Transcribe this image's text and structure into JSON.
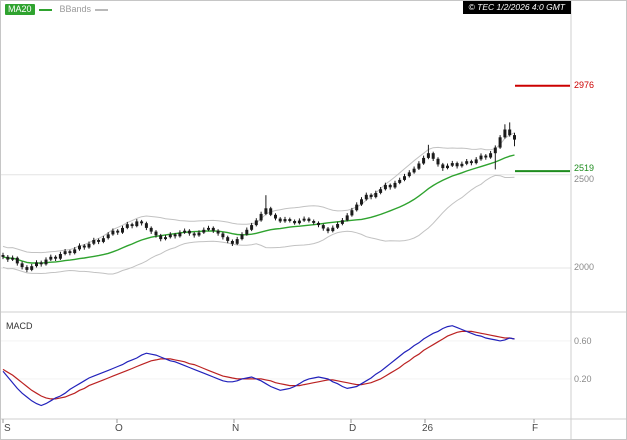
{
  "legend": {
    "ma20_label": "MA20",
    "bbands_label": "BBands"
  },
  "copyright": "© TEC 1/2/2026 4:0 GMT",
  "price_axis": {
    "labels": [
      {
        "text": "2976",
        "color": "#cc0000"
      },
      {
        "text": "2519",
        "color": "#1e8c1e"
      },
      {
        "text": "2500",
        "color": "#8a8a8a"
      },
      {
        "text": "2000",
        "color": "#8a8a8a"
      }
    ]
  },
  "macd_panel": {
    "label": "MACD",
    "axis_labels": [
      "0.60",
      "0.20"
    ]
  },
  "x_axis": {
    "labels": [
      "S",
      "O",
      "N",
      "D",
      "26",
      "F"
    ]
  },
  "colors": {
    "candle": "#1b1b1b",
    "ma20": "#2fa32f",
    "bbands": "#c2c2c2",
    "resistance": "#cc0000",
    "support": "#1e8c1e",
    "macd_line": "#2222bb",
    "signal_line": "#bb2222",
    "grid": "#e4e4e4"
  },
  "chart_data": [
    {
      "type": "candlestick",
      "title": "",
      "xticklabels": [
        "S",
        "O",
        "N",
        "D",
        "26",
        "F"
      ],
      "ylim": [
        1770,
        3430
      ],
      "gridlines_y": [
        2500,
        2000
      ],
      "levels": [
        {
          "value": 2976,
          "color": "#cc0000",
          "label": "2976"
        },
        {
          "value": 2519,
          "color": "#1e8c1e",
          "label": "2519"
        }
      ],
      "overlays": [
        {
          "name": "MA20",
          "type": "sma",
          "period": 20,
          "color": "#2fa32f"
        },
        {
          "name": "BBands",
          "type": "bollinger",
          "period": 20,
          "stddev": 2,
          "color": "#c2c2c2"
        }
      ],
      "ohlc": [
        [
          2070,
          2082,
          2048,
          2060
        ],
        [
          2060,
          2070,
          2033,
          2045
        ],
        [
          2045,
          2067,
          2038,
          2055
        ],
        [
          2055,
          2062,
          2013,
          2025
        ],
        [
          2025,
          2035,
          1993,
          2005
        ],
        [
          2005,
          2015,
          1978,
          1990
        ],
        [
          1990,
          2022,
          1983,
          2010
        ],
        [
          2010,
          2042,
          2003,
          2030
        ],
        [
          2030,
          2040,
          2008,
          2020
        ],
        [
          2020,
          2057,
          2013,
          2045
        ],
        [
          2045,
          2072,
          2038,
          2060
        ],
        [
          2060,
          2068,
          2038,
          2050
        ],
        [
          2050,
          2087,
          2043,
          2075
        ],
        [
          2075,
          2102,
          2068,
          2090
        ],
        [
          2090,
          2098,
          2068,
          2080
        ],
        [
          2080,
          2112,
          2073,
          2100
        ],
        [
          2100,
          2132,
          2093,
          2120
        ],
        [
          2120,
          2128,
          2098,
          2110
        ],
        [
          2110,
          2142,
          2103,
          2130
        ],
        [
          2130,
          2162,
          2123,
          2150
        ],
        [
          2150,
          2158,
          2128,
          2140
        ],
        [
          2140,
          2172,
          2133,
          2160
        ],
        [
          2160,
          2192,
          2153,
          2180
        ],
        [
          2180,
          2212,
          2173,
          2200
        ],
        [
          2200,
          2208,
          2178,
          2190
        ],
        [
          2190,
          2227,
          2183,
          2215
        ],
        [
          2215,
          2247,
          2208,
          2235
        ],
        [
          2235,
          2243,
          2213,
          2225
        ],
        [
          2225,
          2262,
          2218,
          2250
        ],
        [
          2250,
          2258,
          2228,
          2240
        ],
        [
          2240,
          2248,
          2203,
          2215
        ],
        [
          2215,
          2223,
          2183,
          2195
        ],
        [
          2195,
          2203,
          2163,
          2175
        ],
        [
          2175,
          2183,
          2143,
          2155
        ],
        [
          2155,
          2177,
          2148,
          2165
        ],
        [
          2165,
          2192,
          2158,
          2180
        ],
        [
          2180,
          2188,
          2158,
          2170
        ],
        [
          2170,
          2202,
          2163,
          2190
        ],
        [
          2190,
          2212,
          2183,
          2200
        ],
        [
          2200,
          2208,
          2173,
          2185
        ],
        [
          2185,
          2193,
          2163,
          2175
        ],
        [
          2175,
          2202,
          2168,
          2190
        ],
        [
          2190,
          2217,
          2183,
          2205
        ],
        [
          2205,
          2227,
          2198,
          2215
        ],
        [
          2215,
          2223,
          2188,
          2200
        ],
        [
          2200,
          2208,
          2173,
          2185
        ],
        [
          2185,
          2193,
          2153,
          2165
        ],
        [
          2165,
          2173,
          2133,
          2145
        ],
        [
          2145,
          2153,
          2118,
          2130
        ],
        [
          2130,
          2167,
          2123,
          2155
        ],
        [
          2155,
          2192,
          2148,
          2180
        ],
        [
          2180,
          2217,
          2173,
          2205
        ],
        [
          2205,
          2242,
          2198,
          2230
        ],
        [
          2230,
          2267,
          2223,
          2255
        ],
        [
          2255,
          2302,
          2248,
          2290
        ],
        [
          2290,
          2390,
          2283,
          2320
        ],
        [
          2320,
          2328,
          2278,
          2285
        ],
        [
          2285,
          2293,
          2255,
          2265
        ],
        [
          2265,
          2273,
          2242,
          2250
        ],
        [
          2250,
          2274,
          2243,
          2262
        ],
        [
          2262,
          2270,
          2244,
          2252
        ],
        [
          2252,
          2260,
          2232,
          2240
        ],
        [
          2240,
          2266,
          2233,
          2254
        ],
        [
          2254,
          2276,
          2247,
          2264
        ],
        [
          2264,
          2272,
          2244,
          2252
        ],
        [
          2252,
          2260,
          2232,
          2242
        ],
        [
          2242,
          2250,
          2218,
          2230
        ],
        [
          2230,
          2238,
          2200,
          2212
        ],
        [
          2212,
          2220,
          2186,
          2198
        ],
        [
          2198,
          2228,
          2191,
          2216
        ],
        [
          2216,
          2248,
          2209,
          2236
        ],
        [
          2236,
          2268,
          2229,
          2256
        ],
        [
          2256,
          2294,
          2249,
          2282
        ],
        [
          2282,
          2322,
          2275,
          2310
        ],
        [
          2310,
          2352,
          2303,
          2340
        ],
        [
          2340,
          2380,
          2333,
          2368
        ],
        [
          2368,
          2404,
          2361,
          2392
        ],
        [
          2392,
          2400,
          2368,
          2380
        ],
        [
          2380,
          2414,
          2373,
          2402
        ],
        [
          2402,
          2434,
          2395,
          2422
        ],
        [
          2422,
          2457,
          2415,
          2445
        ],
        [
          2445,
          2453,
          2420,
          2432
        ],
        [
          2432,
          2468,
          2425,
          2456
        ],
        [
          2456,
          2484,
          2449,
          2472
        ],
        [
          2472,
          2504,
          2465,
          2492
        ],
        [
          2492,
          2524,
          2485,
          2512
        ],
        [
          2512,
          2544,
          2505,
          2532
        ],
        [
          2532,
          2572,
          2525,
          2560
        ],
        [
          2560,
          2602,
          2553,
          2590
        ],
        [
          2590,
          2660,
          2583,
          2615
        ],
        [
          2615,
          2623,
          2573,
          2585
        ],
        [
          2585,
          2593,
          2543,
          2555
        ],
        [
          2555,
          2563,
          2520,
          2535
        ],
        [
          2535,
          2560,
          2528,
          2548
        ],
        [
          2548,
          2574,
          2541,
          2562
        ],
        [
          2562,
          2570,
          2533,
          2545
        ],
        [
          2545,
          2570,
          2538,
          2558
        ],
        [
          2558,
          2584,
          2551,
          2572
        ],
        [
          2572,
          2580,
          2550,
          2562
        ],
        [
          2562,
          2594,
          2555,
          2582
        ],
        [
          2582,
          2614,
          2575,
          2602
        ],
        [
          2602,
          2610,
          2580,
          2592
        ],
        [
          2592,
          2627,
          2585,
          2615
        ],
        [
          2615,
          2657,
          2528,
          2645
        ],
        [
          2645,
          2712,
          2638,
          2700
        ],
        [
          2700,
          2770,
          2693,
          2742
        ],
        [
          2742,
          2780,
          2704,
          2712
        ],
        [
          2712,
          2724,
          2652,
          2688
        ]
      ]
    },
    {
      "type": "line",
      "title": "MACD",
      "ylim": [
        -0.19,
        0.83
      ],
      "axis_ticks": [
        0.6,
        0.2
      ],
      "series": [
        {
          "name": "MACD",
          "color": "#2222bb",
          "values": [
            0.28,
            0.22,
            0.16,
            0.1,
            0.05,
            0.01,
            -0.03,
            -0.06,
            -0.08,
            -0.06,
            -0.03,
            0.0,
            0.02,
            0.05,
            0.09,
            0.12,
            0.15,
            0.18,
            0.21,
            0.23,
            0.25,
            0.27,
            0.29,
            0.31,
            0.33,
            0.35,
            0.38,
            0.4,
            0.42,
            0.45,
            0.47,
            0.46,
            0.45,
            0.43,
            0.41,
            0.39,
            0.38,
            0.36,
            0.34,
            0.32,
            0.3,
            0.28,
            0.26,
            0.24,
            0.22,
            0.2,
            0.18,
            0.17,
            0.17,
            0.18,
            0.2,
            0.21,
            0.22,
            0.2,
            0.18,
            0.15,
            0.12,
            0.1,
            0.08,
            0.09,
            0.1,
            0.12,
            0.15,
            0.18,
            0.2,
            0.21,
            0.22,
            0.21,
            0.2,
            0.17,
            0.15,
            0.12,
            0.1,
            0.11,
            0.12,
            0.15,
            0.18,
            0.21,
            0.25,
            0.28,
            0.32,
            0.36,
            0.4,
            0.44,
            0.48,
            0.51,
            0.55,
            0.58,
            0.62,
            0.65,
            0.68,
            0.7,
            0.73,
            0.75,
            0.76,
            0.74,
            0.72,
            0.7,
            0.68,
            0.66,
            0.65,
            0.63,
            0.62,
            0.61,
            0.6,
            0.61,
            0.63,
            0.62
          ]
        },
        {
          "name": "Signal",
          "color": "#bb2222",
          "values": [
            0.3,
            0.27,
            0.24,
            0.2,
            0.16,
            0.12,
            0.08,
            0.05,
            0.02,
            0.0,
            -0.01,
            -0.01,
            0.0,
            0.01,
            0.03,
            0.05,
            0.08,
            0.1,
            0.13,
            0.15,
            0.17,
            0.19,
            0.21,
            0.23,
            0.25,
            0.27,
            0.29,
            0.31,
            0.33,
            0.35,
            0.37,
            0.39,
            0.4,
            0.41,
            0.41,
            0.41,
            0.4,
            0.39,
            0.38,
            0.36,
            0.35,
            0.33,
            0.31,
            0.29,
            0.27,
            0.25,
            0.23,
            0.22,
            0.21,
            0.2,
            0.2,
            0.2,
            0.2,
            0.2,
            0.2,
            0.19,
            0.18,
            0.16,
            0.15,
            0.14,
            0.13,
            0.13,
            0.13,
            0.14,
            0.15,
            0.16,
            0.17,
            0.18,
            0.19,
            0.19,
            0.18,
            0.17,
            0.16,
            0.15,
            0.14,
            0.14,
            0.15,
            0.16,
            0.18,
            0.2,
            0.23,
            0.26,
            0.29,
            0.32,
            0.36,
            0.39,
            0.43,
            0.46,
            0.5,
            0.53,
            0.56,
            0.59,
            0.62,
            0.65,
            0.67,
            0.69,
            0.7,
            0.7,
            0.7,
            0.69,
            0.68,
            0.67,
            0.66,
            0.65,
            0.64,
            0.63,
            0.63,
            0.62
          ]
        }
      ]
    }
  ]
}
